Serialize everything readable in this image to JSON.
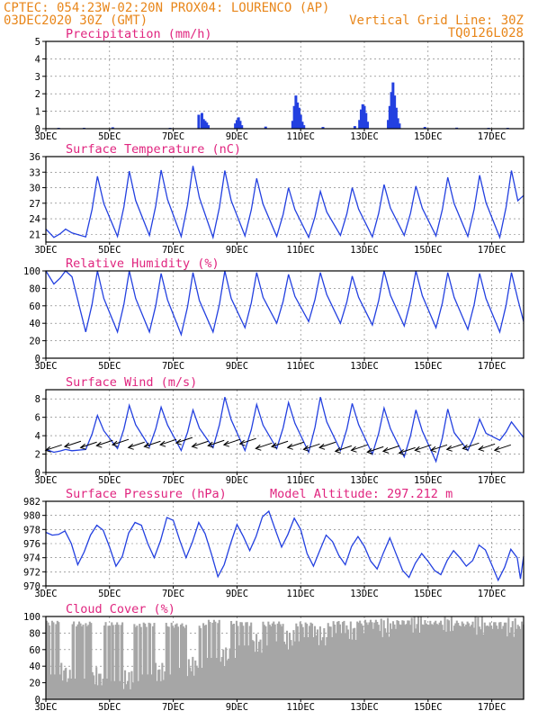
{
  "header": {
    "line1": "CPTEC:  054:23W-02:20N  PROX04: LOURENCO (AP)",
    "line2_left": "03DEC2020 30Z (GMT)",
    "line2_right": "Vertical Grid Line: 30Z",
    "line3_right": "TQ0126L028"
  },
  "colors": {
    "header": "#e8861a",
    "title": "#e0257f",
    "series": "#2340e0",
    "cloud": "#a6a6a6",
    "axis": "#000000"
  },
  "chart_data": [
    {
      "type": "bar",
      "title": "Precipitation (mm/h)",
      "ylim": [
        0,
        5
      ],
      "yticks": [
        0,
        1,
        2,
        3,
        4,
        5
      ],
      "xlim": [
        3,
        18
      ],
      "xticks": [
        "3DEC",
        "5DEC",
        "7DEC",
        "9DEC",
        "11DEC",
        "13DEC",
        "15DEC",
        "17DEC"
      ],
      "values": [
        [
          3.4,
          0.05
        ],
        [
          4.2,
          0.05
        ],
        [
          5.1,
          0.08
        ],
        [
          6.9,
          0.05
        ],
        [
          7.8,
          0.8
        ],
        [
          7.9,
          0.9
        ],
        [
          7.95,
          0.55
        ],
        [
          8.0,
          0.45
        ],
        [
          8.05,
          0.35
        ],
        [
          8.1,
          0.2
        ],
        [
          8.95,
          0.3
        ],
        [
          9.0,
          0.5
        ],
        [
          9.05,
          0.65
        ],
        [
          9.1,
          0.45
        ],
        [
          9.15,
          0.2
        ],
        [
          9.9,
          0.12
        ],
        [
          10.75,
          0.45
        ],
        [
          10.8,
          1.3
        ],
        [
          10.85,
          1.9
        ],
        [
          10.9,
          1.5
        ],
        [
          10.95,
          1.2
        ],
        [
          11.0,
          0.8
        ],
        [
          11.05,
          0.4
        ],
        [
          11.1,
          0.2
        ],
        [
          11.7,
          0.1
        ],
        [
          12.7,
          0.15
        ],
        [
          12.85,
          0.5
        ],
        [
          12.9,
          1.1
        ],
        [
          12.95,
          1.4
        ],
        [
          13.0,
          1.3
        ],
        [
          13.05,
          0.9
        ],
        [
          13.1,
          0.4
        ],
        [
          13.75,
          0.5
        ],
        [
          13.8,
          1.3
        ],
        [
          13.85,
          2.1
        ],
        [
          13.9,
          2.65
        ],
        [
          13.95,
          1.9
        ],
        [
          14.0,
          1.2
        ],
        [
          14.05,
          0.6
        ],
        [
          14.1,
          0.3
        ],
        [
          14.9,
          0.1
        ],
        [
          15.9,
          0.06
        ],
        [
          16.9,
          0.05
        ],
        [
          17.5,
          0.05
        ]
      ]
    },
    {
      "type": "line",
      "title": "Surface Temperature (nC)",
      "ylim": [
        19.5,
        36
      ],
      "yticks": [
        21,
        24,
        27,
        30,
        33,
        36
      ],
      "xlim": [
        3,
        18
      ],
      "xticks": [
        "3DEC",
        "5DEC",
        "7DEC",
        "9DEC",
        "11DEC",
        "13DEC",
        "15DEC",
        "17DEC"
      ],
      "days": [
        {
          "day": 3,
          "max": 22.0,
          "min": 20.4
        },
        {
          "day": 4,
          "max": 32.2,
          "min": 20.5
        },
        {
          "day": 5,
          "max": 33.2,
          "min": 20.6
        },
        {
          "day": 6,
          "max": 33.4,
          "min": 20.8
        },
        {
          "day": 7,
          "max": 34.2,
          "min": 20.6
        },
        {
          "day": 8,
          "max": 33.3,
          "min": 20.4
        },
        {
          "day": 9,
          "max": 31.8,
          "min": 20.7
        },
        {
          "day": 10,
          "max": 30.0,
          "min": 20.6
        },
        {
          "day": 11,
          "max": 29.3,
          "min": 20.4
        },
        {
          "day": 12,
          "max": 30.0,
          "min": 20.8
        },
        {
          "day": 13,
          "max": 30.6,
          "min": 20.5
        },
        {
          "day": 14,
          "max": 30.3,
          "min": 20.8
        },
        {
          "day": 15,
          "max": 32.0,
          "min": 20.7
        },
        {
          "day": 16,
          "max": 32.4,
          "min": 20.6
        },
        {
          "day": 17,
          "max": 33.3,
          "min": 20.4
        },
        {
          "day": 18,
          "max": 32.7,
          "min": 20.9
        }
      ],
      "end_value": 28.5
    },
    {
      "type": "line",
      "title": "Relative Humidity (%)",
      "ylim": [
        0,
        100
      ],
      "yticks": [
        0,
        20,
        40,
        60,
        80,
        100
      ],
      "xlim": [
        3,
        18
      ],
      "xticks": [
        "3DEC",
        "5DEC",
        "7DEC",
        "9DEC",
        "11DEC",
        "13DEC",
        "15DEC",
        "17DEC"
      ],
      "days": [
        {
          "day": 3,
          "max": 100,
          "min": 85
        },
        {
          "day": 4,
          "max": 100,
          "min": 30
        },
        {
          "day": 5,
          "max": 100,
          "min": 30
        },
        {
          "day": 6,
          "max": 97,
          "min": 30
        },
        {
          "day": 7,
          "max": 98,
          "min": 27
        },
        {
          "day": 8,
          "max": 100,
          "min": 30
        },
        {
          "day": 9,
          "max": 98,
          "min": 35
        },
        {
          "day": 10,
          "max": 96,
          "min": 40
        },
        {
          "day": 11,
          "max": 98,
          "min": 42
        },
        {
          "day": 12,
          "max": 94,
          "min": 40
        },
        {
          "day": 13,
          "max": 100,
          "min": 38
        },
        {
          "day": 14,
          "max": 100,
          "min": 37
        },
        {
          "day": 15,
          "max": 98,
          "min": 35
        },
        {
          "day": 16,
          "max": 97,
          "min": 33
        },
        {
          "day": 17,
          "max": 98,
          "min": 30
        },
        {
          "day": 18,
          "max": 98,
          "min": 31
        }
      ],
      "end_value": 42
    },
    {
      "type": "line",
      "title": "Surface Wind (m/s)",
      "ylim": [
        0,
        9
      ],
      "yticks": [
        0,
        2,
        4,
        6,
        8
      ],
      "xlim": [
        3,
        18
      ],
      "xticks": [
        "3DEC",
        "5DEC",
        "7DEC",
        "9DEC",
        "11DEC",
        "13DEC",
        "15DEC",
        "17DEC"
      ],
      "days": [
        {
          "day": 3,
          "max": 2.5,
          "min": 2.2
        },
        {
          "day": 4,
          "max": 6.2,
          "min": 2.5
        },
        {
          "day": 5,
          "max": 7.3,
          "min": 2.6
        },
        {
          "day": 6,
          "max": 7.1,
          "min": 2.8
        },
        {
          "day": 7,
          "max": 6.8,
          "min": 2.4
        },
        {
          "day": 8,
          "max": 8.2,
          "min": 2.7
        },
        {
          "day": 9,
          "max": 7.4,
          "min": 2.4
        },
        {
          "day": 10,
          "max": 7.6,
          "min": 2.6
        },
        {
          "day": 11,
          "max": 8.2,
          "min": 2.2
        },
        {
          "day": 12,
          "max": 7.5,
          "min": 2.4
        },
        {
          "day": 13,
          "max": 7.0,
          "min": 2.0
        },
        {
          "day": 14,
          "max": 6.8,
          "min": 1.7
        },
        {
          "day": 15,
          "max": 6.9,
          "min": 1.2
        },
        {
          "day": 16,
          "max": 5.8,
          "min": 2.4
        },
        {
          "day": 17,
          "max": 5.5,
          "min": 3.5
        },
        {
          "day": 18,
          "max": 5.2,
          "min": 3.8
        }
      ],
      "end_value": 3.8,
      "vectors": [
        {
          "day": 3.5,
          "speed": 3.0
        },
        {
          "day": 4.1,
          "speed": 3.4
        },
        {
          "day": 4.6,
          "speed": 3.3
        },
        {
          "day": 5.1,
          "speed": 3.5
        },
        {
          "day": 5.6,
          "speed": 3.6
        },
        {
          "day": 6.1,
          "speed": 3.3
        },
        {
          "day": 6.6,
          "speed": 3.4
        },
        {
          "day": 7.1,
          "speed": 3.6
        },
        {
          "day": 7.6,
          "speed": 3.8
        },
        {
          "day": 8.1,
          "speed": 3.4
        },
        {
          "day": 8.6,
          "speed": 3.5
        },
        {
          "day": 9.1,
          "speed": 3.6
        },
        {
          "day": 9.6,
          "speed": 3.7
        },
        {
          "day": 10.1,
          "speed": 3.2
        },
        {
          "day": 10.6,
          "speed": 3.4
        },
        {
          "day": 11.1,
          "speed": 3.3
        },
        {
          "day": 11.6,
          "speed": 3.1
        },
        {
          "day": 12.1,
          "speed": 3.3
        },
        {
          "day": 12.6,
          "speed": 2.9
        },
        {
          "day": 13.1,
          "speed": 3.0
        },
        {
          "day": 13.6,
          "speed": 2.8
        },
        {
          "day": 14.1,
          "speed": 2.9
        },
        {
          "day": 14.6,
          "speed": 2.7
        },
        {
          "day": 15.1,
          "speed": 3.0
        },
        {
          "day": 15.6,
          "speed": 3.0
        },
        {
          "day": 16.1,
          "speed": 3.1
        },
        {
          "day": 16.6,
          "speed": 3.2
        },
        {
          "day": 17.1,
          "speed": 3.1
        },
        {
          "day": 17.6,
          "speed": 3.0
        }
      ]
    },
    {
      "type": "line",
      "title": "Surface Pressure (hPa)",
      "annotation": "Model Altitude: 297.212 m",
      "ylim": [
        970,
        982
      ],
      "yticks": [
        970,
        972,
        974,
        976,
        978,
        980,
        982
      ],
      "xlim": [
        3,
        18
      ],
      "xticks": [
        "3DEC",
        "5DEC",
        "7DEC",
        "9DEC",
        "11DEC",
        "13DEC",
        "15DEC",
        "17DEC"
      ],
      "points": [
        [
          3.0,
          977.6
        ],
        [
          3.2,
          977.2
        ],
        [
          3.4,
          977.3
        ],
        [
          3.6,
          977.8
        ],
        [
          3.8,
          976.0
        ],
        [
          4.0,
          973.0
        ],
        [
          4.2,
          974.8
        ],
        [
          4.4,
          977.2
        ],
        [
          4.6,
          978.6
        ],
        [
          4.8,
          977.9
        ],
        [
          5.0,
          975.5
        ],
        [
          5.2,
          972.8
        ],
        [
          5.4,
          974.2
        ],
        [
          5.6,
          977.5
        ],
        [
          5.8,
          979.0
        ],
        [
          6.0,
          978.6
        ],
        [
          6.2,
          976.0
        ],
        [
          6.4,
          974.0
        ],
        [
          6.6,
          976.4
        ],
        [
          6.8,
          979.7
        ],
        [
          7.0,
          979.3
        ],
        [
          7.2,
          976.5
        ],
        [
          7.4,
          974.0
        ],
        [
          7.6,
          976.2
        ],
        [
          7.8,
          979.0
        ],
        [
          8.0,
          977.4
        ],
        [
          8.2,
          974.5
        ],
        [
          8.4,
          971.3
        ],
        [
          8.6,
          973.0
        ],
        [
          8.8,
          976.0
        ],
        [
          9.0,
          978.7
        ],
        [
          9.2,
          977.0
        ],
        [
          9.4,
          975.0
        ],
        [
          9.6,
          977.0
        ],
        [
          9.8,
          979.8
        ],
        [
          10.0,
          980.6
        ],
        [
          10.2,
          978.0
        ],
        [
          10.4,
          975.5
        ],
        [
          10.6,
          977.3
        ],
        [
          10.8,
          979.6
        ],
        [
          11.0,
          978.0
        ],
        [
          11.2,
          974.6
        ],
        [
          11.4,
          972.8
        ],
        [
          11.6,
          975.0
        ],
        [
          11.8,
          977.2
        ],
        [
          12.0,
          976.3
        ],
        [
          12.2,
          974.3
        ],
        [
          12.4,
          973.0
        ],
        [
          12.6,
          975.6
        ],
        [
          12.8,
          977.0
        ],
        [
          13.0,
          975.6
        ],
        [
          13.2,
          973.5
        ],
        [
          13.4,
          972.4
        ],
        [
          13.6,
          974.7
        ],
        [
          13.8,
          976.8
        ],
        [
          14.0,
          974.5
        ],
        [
          14.2,
          972.2
        ],
        [
          14.4,
          971.2
        ],
        [
          14.6,
          973.2
        ],
        [
          14.8,
          974.6
        ],
        [
          15.0,
          973.5
        ],
        [
          15.2,
          972.2
        ],
        [
          15.4,
          971.6
        ],
        [
          15.6,
          973.6
        ],
        [
          15.8,
          975.0
        ],
        [
          16.0,
          974.0
        ],
        [
          16.2,
          972.8
        ],
        [
          16.4,
          973.6
        ],
        [
          16.6,
          975.8
        ],
        [
          16.8,
          975.1
        ],
        [
          17.0,
          973.0
        ],
        [
          17.2,
          970.8
        ],
        [
          17.4,
          972.6
        ],
        [
          17.6,
          975.2
        ],
        [
          17.8,
          974.0
        ],
        [
          17.9,
          971.0
        ],
        [
          18.0,
          974.2
        ]
      ]
    },
    {
      "type": "bar",
      "title": "Cloud Cover (%)",
      "ylim": [
        0,
        100
      ],
      "yticks": [
        0,
        20,
        40,
        60,
        80,
        100
      ],
      "xlim": [
        3,
        18
      ],
      "xticks": [
        "3DEC",
        "5DEC",
        "7DEC",
        "9DEC",
        "11DEC",
        "13DEC",
        "15DEC",
        "17DEC"
      ],
      "segments": [
        {
          "from": 3.0,
          "to": 3.6,
          "base": 95,
          "low": 20
        },
        {
          "from": 3.6,
          "to": 5.0,
          "base": 94,
          "low": 15
        },
        {
          "from": 5.0,
          "to": 6.0,
          "base": 93,
          "low": 12
        },
        {
          "from": 6.0,
          "to": 7.0,
          "base": 93,
          "low": 20
        },
        {
          "from": 7.0,
          "to": 8.0,
          "base": 92,
          "low": 28
        },
        {
          "from": 8.0,
          "to": 9.0,
          "base": 96,
          "low": 40
        },
        {
          "from": 9.0,
          "to": 10.0,
          "base": 94,
          "low": 55
        },
        {
          "from": 10.0,
          "to": 11.0,
          "base": 94,
          "low": 60
        },
        {
          "from": 11.0,
          "to": 12.0,
          "base": 93,
          "low": 65
        },
        {
          "from": 12.0,
          "to": 13.0,
          "base": 95,
          "low": 70
        },
        {
          "from": 13.0,
          "to": 14.0,
          "base": 96,
          "low": 75
        },
        {
          "from": 14.0,
          "to": 15.0,
          "base": 96,
          "low": 80
        },
        {
          "from": 15.0,
          "to": 16.0,
          "base": 95,
          "low": 80
        },
        {
          "from": 16.0,
          "to": 17.0,
          "base": 94,
          "low": 78
        },
        {
          "from": 17.0,
          "to": 18.0,
          "base": 94,
          "low": 75
        }
      ]
    }
  ]
}
